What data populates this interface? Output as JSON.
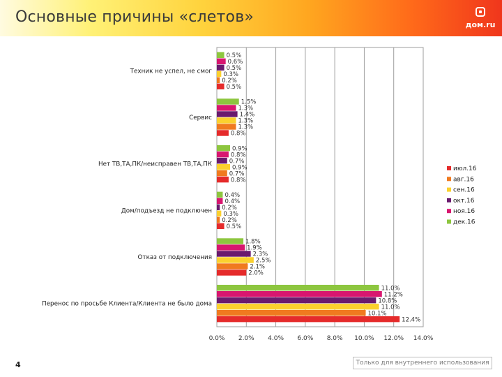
{
  "title": "Основные причины «слетов»",
  "logo": {
    "text": "дом.ru"
  },
  "page_number": "4",
  "footer_note": "Только для внутреннего использования",
  "chart_data": {
    "type": "bar",
    "orientation": "horizontal",
    "title": "",
    "xlabel": "",
    "ylabel": "",
    "xlim": [
      0,
      14
    ],
    "x_ticks": [
      "0.0%",
      "2.0%",
      "4.0%",
      "6.0%",
      "8.0%",
      "10.0%",
      "12.0%",
      "14.0%"
    ],
    "value_format": "percent",
    "grid": true,
    "legend_position": "right",
    "categories": [
      "Техник не успел, не смог",
      "Сервис",
      "Нет ТВ,ТА,ПК/неисправен ТВ,ТА,ПК",
      "Дом/подъезд не подключен",
      "Отказ от подключения",
      "Перенос по просьбе Клиента/Клиента не было дома"
    ],
    "series": [
      {
        "name": "июл.16",
        "color": "#e52b2b",
        "values": [
          0.5,
          0.8,
          0.8,
          0.5,
          2.0,
          12.4
        ]
      },
      {
        "name": "авг.16",
        "color": "#f07a1f",
        "values": [
          0.2,
          1.3,
          0.7,
          0.2,
          2.1,
          10.1
        ]
      },
      {
        "name": "сен.16",
        "color": "#fbd12e",
        "values": [
          0.3,
          1.3,
          0.9,
          0.3,
          2.5,
          11.0
        ]
      },
      {
        "name": "окт.16",
        "color": "#6a1a6e",
        "values": [
          0.5,
          1.4,
          0.7,
          0.2,
          2.3,
          10.8
        ]
      },
      {
        "name": "ноя.16",
        "color": "#d8166f",
        "values": [
          0.6,
          1.3,
          0.8,
          0.4,
          1.9,
          11.2
        ]
      },
      {
        "name": "дек.16",
        "color": "#8dc63f",
        "values": [
          0.5,
          1.5,
          0.9,
          0.4,
          1.8,
          11.0
        ]
      }
    ]
  }
}
